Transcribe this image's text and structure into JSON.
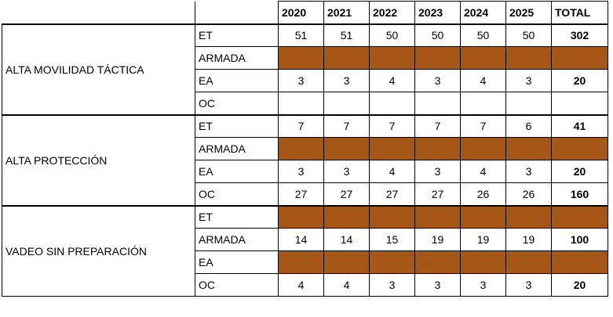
{
  "header": {
    "years": [
      "2020",
      "2021",
      "2022",
      "2023",
      "2024",
      "2025"
    ],
    "total": "TOTAL"
  },
  "groups": [
    {
      "category": "ALTA MOVILIDAD TÁCTICA",
      "rows": [
        {
          "label": "ET",
          "values": [
            "51",
            "51",
            "50",
            "50",
            "50",
            "50"
          ],
          "total": "302"
        },
        {
          "label": "ARMADA",
          "filled": true
        },
        {
          "label": "EA",
          "values": [
            "3",
            "3",
            "4",
            "3",
            "4",
            "3"
          ],
          "total": "20"
        },
        {
          "label": "OC",
          "values": [
            "",
            "",
            "",
            "",
            "",
            ""
          ],
          "total": ""
        }
      ]
    },
    {
      "category": "ALTA PROTECCIÓN",
      "rows": [
        {
          "label": "ET",
          "values": [
            "7",
            "7",
            "7",
            "7",
            "7",
            "6"
          ],
          "total": "41"
        },
        {
          "label": "ARMADA",
          "filled": true
        },
        {
          "label": "EA",
          "values": [
            "3",
            "3",
            "4",
            "3",
            "4",
            "3"
          ],
          "total": "20"
        },
        {
          "label": "OC",
          "values": [
            "27",
            "27",
            "27",
            "27",
            "26",
            "26"
          ],
          "total": "160"
        }
      ]
    },
    {
      "category": "VADEO SIN PREPARACIÓN",
      "rows": [
        {
          "label": "ET",
          "filled": true
        },
        {
          "label": "ARMADA",
          "values": [
            "14",
            "14",
            "15",
            "19",
            "19",
            "19"
          ],
          "total": "100"
        },
        {
          "label": "EA",
          "filled": true
        },
        {
          "label": "OC",
          "values": [
            "4",
            "4",
            "3",
            "3",
            "3",
            "3"
          ],
          "total": "20"
        }
      ]
    }
  ],
  "colors": {
    "filled": "#a65718",
    "border": "#000000"
  }
}
